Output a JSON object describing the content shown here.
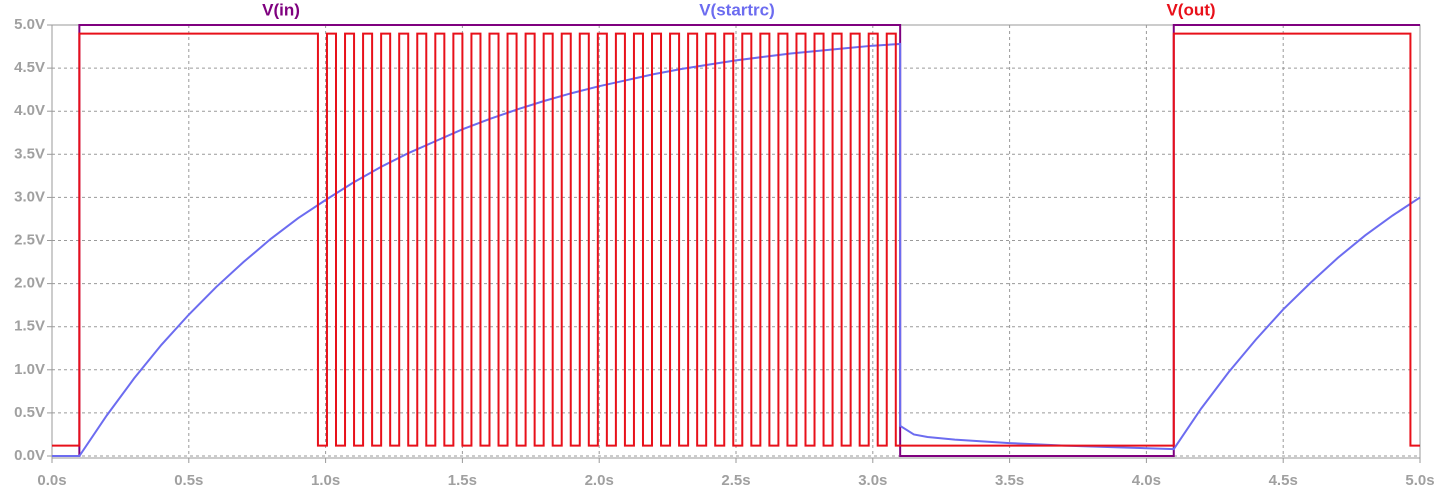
{
  "chart_data": {
    "type": "line",
    "grid": true,
    "xlim": [
      0,
      5.0
    ],
    "ylim": [
      0,
      5.0
    ],
    "xticks": [
      {
        "value": 0,
        "label": "0.0s"
      },
      {
        "value": 0.5,
        "label": "0.5s"
      },
      {
        "value": 1.0,
        "label": "1.0s"
      },
      {
        "value": 1.5,
        "label": "1.5s"
      },
      {
        "value": 2.0,
        "label": "2.0s"
      },
      {
        "value": 2.5,
        "label": "2.5s"
      },
      {
        "value": 3.0,
        "label": "3.0s"
      },
      {
        "value": 3.5,
        "label": "3.5s"
      },
      {
        "value": 4.0,
        "label": "4.0s"
      },
      {
        "value": 4.5,
        "label": "4.5s"
      },
      {
        "value": 5.0,
        "label": "5.0s"
      }
    ],
    "yticks": [
      {
        "value": 0,
        "label": "0.0V"
      },
      {
        "value": 0.5,
        "label": "0.5V"
      },
      {
        "value": 1.0,
        "label": "1.0V"
      },
      {
        "value": 1.5,
        "label": "1.5V"
      },
      {
        "value": 2.0,
        "label": "2.0V"
      },
      {
        "value": 2.5,
        "label": "2.5V"
      },
      {
        "value": 3.0,
        "label": "3.0V"
      },
      {
        "value": 3.5,
        "label": "3.5V"
      },
      {
        "value": 4.0,
        "label": "4.0V"
      },
      {
        "value": 4.5,
        "label": "4.5V"
      },
      {
        "value": 5.0,
        "label": "5.0V"
      }
    ],
    "series": [
      {
        "name": "V(in)",
        "color": "#7f007f",
        "x": [
          0,
          0.1,
          0.1,
          3.1,
          3.1,
          4.1,
          4.1,
          5.0
        ],
        "values": [
          0,
          0,
          5,
          5,
          0,
          0,
          5,
          5
        ]
      },
      {
        "name": "V(startrc)",
        "color": "#6c6cf0",
        "x": [
          0,
          0.1,
          0.2,
          0.3,
          0.4,
          0.5,
          0.6,
          0.7,
          0.8,
          0.9,
          1.0,
          1.1,
          1.2,
          1.3,
          1.4,
          1.5,
          1.6,
          1.7,
          1.8,
          1.9,
          2.0,
          2.1,
          2.2,
          2.3,
          2.4,
          2.5,
          2.6,
          2.7,
          2.8,
          2.9,
          3.0,
          3.1,
          3.1,
          3.15,
          3.2,
          3.3,
          3.5,
          3.7,
          3.9,
          4.1,
          4.2,
          4.3,
          4.4,
          4.5,
          4.6,
          4.7,
          4.8,
          4.9,
          5.0
        ],
        "values": [
          0,
          0,
          0.47,
          0.9,
          1.29,
          1.64,
          1.96,
          2.25,
          2.52,
          2.76,
          2.97,
          3.17,
          3.35,
          3.51,
          3.65,
          3.79,
          3.91,
          4.02,
          4.12,
          4.21,
          4.29,
          4.36,
          4.43,
          4.49,
          4.54,
          4.59,
          4.63,
          4.67,
          4.7,
          4.73,
          4.76,
          4.78,
          0.35,
          0.25,
          0.22,
          0.19,
          0.15,
          0.12,
          0.1,
          0.08,
          0.55,
          0.97,
          1.35,
          1.7,
          2.01,
          2.3,
          2.56,
          2.79,
          3.0
        ]
      },
      {
        "name": "V(out)",
        "color": "#e8101a",
        "x": [
          0,
          0.1,
          0.1,
          0.972,
          0.972,
          1.005,
          1.005,
          1.038,
          1.038,
          1.071,
          1.071,
          1.104,
          1.104,
          1.137,
          1.137,
          1.17,
          1.17,
          1.203,
          1.203,
          1.236,
          1.236,
          1.269,
          1.269,
          1.302,
          1.302,
          1.335,
          1.335,
          1.368,
          1.368,
          1.401,
          1.401,
          1.434,
          1.434,
          1.467,
          1.467,
          1.5,
          1.5,
          1.533,
          1.533,
          1.566,
          1.566,
          1.599,
          1.599,
          1.632,
          1.632,
          1.665,
          1.665,
          1.698,
          1.698,
          1.731,
          1.731,
          1.764,
          1.764,
          1.797,
          1.797,
          1.83,
          1.83,
          1.863,
          1.863,
          1.896,
          1.896,
          1.929,
          1.929,
          1.962,
          1.962,
          1.995,
          1.995,
          2.028,
          2.028,
          2.061,
          2.061,
          2.094,
          2.094,
          2.127,
          2.127,
          2.16,
          2.16,
          2.193,
          2.193,
          2.226,
          2.226,
          2.259,
          2.259,
          2.292,
          2.292,
          2.325,
          2.325,
          2.358,
          2.358,
          2.391,
          2.391,
          2.424,
          2.424,
          2.457,
          2.457,
          2.49,
          2.49,
          2.523,
          2.523,
          2.556,
          2.556,
          2.589,
          2.589,
          2.622,
          2.622,
          2.655,
          2.655,
          2.688,
          2.688,
          2.721,
          2.721,
          2.754,
          2.754,
          2.787,
          2.787,
          2.82,
          2.82,
          2.853,
          2.853,
          2.886,
          2.886,
          2.919,
          2.919,
          2.952,
          2.952,
          2.985,
          2.985,
          3.018,
          3.018,
          3.051,
          3.051,
          3.084,
          3.084,
          4.1,
          4.1,
          4.965,
          4.965,
          5.0
        ],
        "values": [
          0.12,
          0.12,
          4.9,
          4.9,
          0.12,
          0.12,
          4.9,
          4.9,
          0.12,
          0.12,
          4.9,
          4.9,
          0.12,
          0.12,
          4.9,
          4.9,
          0.12,
          0.12,
          4.9,
          4.9,
          0.12,
          0.12,
          4.9,
          4.9,
          0.12,
          0.12,
          4.9,
          4.9,
          0.12,
          0.12,
          4.9,
          4.9,
          0.12,
          0.12,
          4.9,
          4.9,
          0.12,
          0.12,
          4.9,
          4.9,
          0.12,
          0.12,
          4.9,
          4.9,
          0.12,
          0.12,
          4.9,
          4.9,
          0.12,
          0.12,
          4.9,
          4.9,
          0.12,
          0.12,
          4.9,
          4.9,
          0.12,
          0.12,
          4.9,
          4.9,
          0.12,
          0.12,
          4.9,
          4.9,
          0.12,
          0.12,
          4.9,
          4.9,
          0.12,
          0.12,
          4.9,
          4.9,
          0.12,
          0.12,
          4.9,
          4.9,
          0.12,
          0.12,
          4.9,
          4.9,
          0.12,
          0.12,
          4.9,
          4.9,
          0.12,
          0.12,
          4.9,
          4.9,
          0.12,
          0.12,
          4.9,
          4.9,
          0.12,
          0.12,
          4.9,
          4.9,
          0.12,
          0.12,
          4.9,
          4.9,
          0.12,
          0.12,
          4.9,
          4.9,
          0.12,
          0.12,
          4.9,
          4.9,
          0.12,
          0.12,
          4.9,
          4.9,
          0.12,
          0.12,
          4.9,
          4.9,
          0.12,
          0.12,
          4.9,
          4.9,
          0.12,
          0.12,
          4.9,
          4.9,
          0.12,
          0.12,
          4.9,
          4.9,
          0.12,
          0.12,
          4.9,
          4.9,
          0.12,
          0.12,
          4.9,
          4.9,
          0.12,
          0.12
        ]
      }
    ]
  }
}
